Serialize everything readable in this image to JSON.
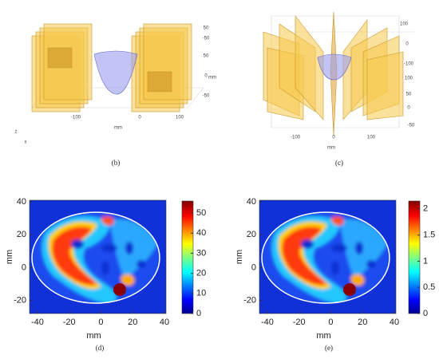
{
  "panels": [
    {
      "label": "(b)",
      "axis_labels": [
        "50",
        "-50",
        "50",
        "0",
        "mm",
        "-50",
        "-100",
        "0",
        "100",
        "mm",
        "z",
        "x"
      ]
    },
    {
      "label": "(c)",
      "axis_labels": [
        "100",
        "0",
        "-100",
        "100",
        "50",
        "0",
        "-50",
        "-100",
        "0",
        "100",
        "mm"
      ]
    }
  ],
  "heatmaps": [
    {
      "label": "(d)",
      "xlabel": "mm",
      "ylabel": "mm",
      "xlim": [
        -45,
        41
      ],
      "ylim": [
        -28,
        41
      ],
      "xticks": [
        -40,
        -20,
        0,
        20,
        40
      ],
      "yticks": [
        -20,
        0,
        20,
        40
      ],
      "clim": [
        0,
        56
      ],
      "cticks": [
        0,
        10,
        20,
        30,
        40,
        50
      ]
    },
    {
      "label": "(e)",
      "xlabel": "mm",
      "ylabel": "mm",
      "xlim": [
        -45,
        41
      ],
      "ylim": [
        -28,
        41
      ],
      "xticks": [
        -40,
        -20,
        0,
        20,
        40
      ],
      "yticks": [
        -20,
        0,
        20,
        40
      ],
      "clim": [
        0,
        2.15
      ],
      "cticks": [
        0,
        0.5,
        1,
        1.5,
        2
      ]
    }
  ]
}
